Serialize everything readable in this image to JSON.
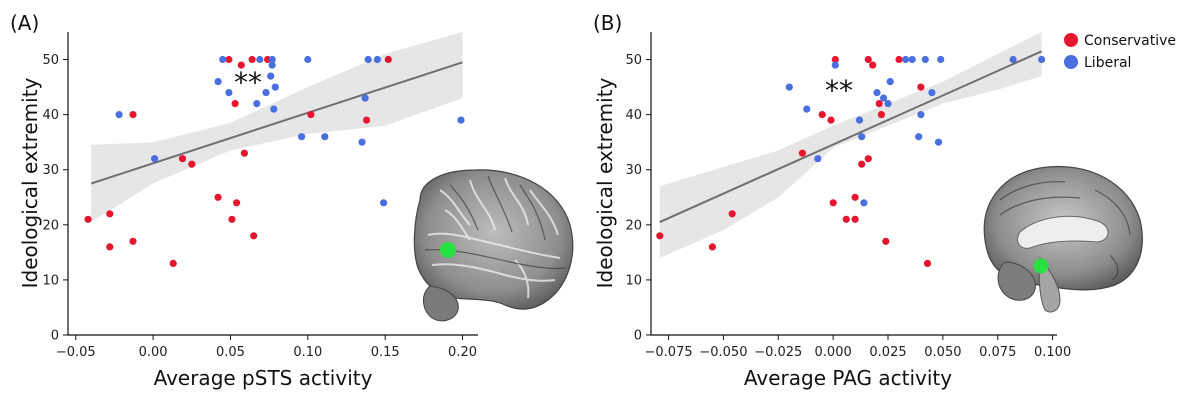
{
  "legend": {
    "conservative_label": "Conservative",
    "liberal_label": "Liberal",
    "conservative_color": "#e8152f",
    "liberal_color": "#4a6fe0"
  },
  "chart_data": [
    {
      "type": "scatter",
      "panel_label": "(A)",
      "title": "",
      "xlabel": "Average pSTS activity",
      "ylabel": "Ideological extremity",
      "xlim": [
        -0.055,
        0.21
      ],
      "ylim": [
        0,
        55
      ],
      "xticks": [
        -0.05,
        0.0,
        0.05,
        0.1,
        0.15,
        0.2
      ],
      "xtick_labels": [
        "−0.05",
        "0.00",
        "0.05",
        "0.10",
        "0.15",
        "0.20"
      ],
      "yticks": [
        0,
        10,
        20,
        30,
        40,
        50
      ],
      "ytick_labels": [
        "0",
        "10",
        "20",
        "30",
        "40",
        "50"
      ],
      "significance": "**",
      "inset": "brain-lateral-pSTS",
      "fit": {
        "x": [
          -0.04,
          0.2
        ],
        "y": [
          27.5,
          49.5
        ]
      },
      "band": {
        "x": [
          -0.04,
          0.0,
          0.05,
          0.1,
          0.15,
          0.2
        ],
        "upper": [
          34.5,
          35.0,
          38.5,
          45.0,
          51.0,
          55.0
        ],
        "lower": [
          20.5,
          27.5,
          33.5,
          36.5,
          38.0,
          43.0
        ]
      },
      "series": [
        {
          "name": "Conservative",
          "points": [
            [
              -0.042,
              21
            ],
            [
              -0.028,
              22
            ],
            [
              -0.028,
              16
            ],
            [
              -0.013,
              17
            ],
            [
              -0.013,
              40
            ],
            [
              0.013,
              13
            ],
            [
              0.019,
              32
            ],
            [
              0.025,
              31
            ],
            [
              0.042,
              25
            ],
            [
              0.049,
              50
            ],
            [
              0.051,
              21
            ],
            [
              0.053,
              42
            ],
            [
              0.054,
              24
            ],
            [
              0.057,
              49
            ],
            [
              0.059,
              33
            ],
            [
              0.064,
              50
            ],
            [
              0.065,
              18
            ],
            [
              0.074,
              50
            ],
            [
              0.102,
              40
            ],
            [
              0.138,
              39
            ],
            [
              0.152,
              50
            ]
          ]
        },
        {
          "name": "Liberal",
          "points": [
            [
              -0.022,
              40
            ],
            [
              0.001,
              32
            ],
            [
              0.042,
              46
            ],
            [
              0.045,
              50
            ],
            [
              0.049,
              44
            ],
            [
              0.067,
              42
            ],
            [
              0.069,
              50
            ],
            [
              0.073,
              44
            ],
            [
              0.076,
              47
            ],
            [
              0.077,
              50
            ],
            [
              0.077,
              49
            ],
            [
              0.078,
              41
            ],
            [
              0.079,
              45
            ],
            [
              0.096,
              36
            ],
            [
              0.1,
              50
            ],
            [
              0.111,
              36
            ],
            [
              0.135,
              35
            ],
            [
              0.137,
              43
            ],
            [
              0.139,
              50
            ],
            [
              0.145,
              50
            ],
            [
              0.149,
              24
            ],
            [
              0.199,
              39
            ]
          ]
        }
      ]
    },
    {
      "type": "scatter",
      "panel_label": "(B)",
      "title": "",
      "xlabel": "Average PAG activity",
      "ylabel": "Ideological extremity",
      "xlim": [
        -0.083,
        0.102
      ],
      "ylim": [
        0,
        55
      ],
      "xticks": [
        -0.075,
        -0.05,
        -0.025,
        0.0,
        0.025,
        0.05,
        0.075,
        0.1
      ],
      "xtick_labels": [
        "−0.075",
        "−0.050",
        "−0.025",
        "0.000",
        "0.025",
        "0.050",
        "0.075",
        "0.100"
      ],
      "yticks": [
        0,
        10,
        20,
        30,
        40,
        50
      ],
      "ytick_labels": [
        "0",
        "10",
        "20",
        "30",
        "40",
        "50"
      ],
      "significance": "**",
      "inset": "brain-medial-PAG",
      "fit": {
        "x": [
          -0.079,
          0.095
        ],
        "y": [
          20.5,
          51.5
        ]
      },
      "band": {
        "x": [
          -0.079,
          -0.05,
          -0.025,
          0.0,
          0.025,
          0.05,
          0.075,
          0.095
        ],
        "upper": [
          27.0,
          30.5,
          33.5,
          38.0,
          42.0,
          46.0,
          51.0,
          55.0
        ],
        "lower": [
          14.0,
          19.0,
          25.0,
          34.0,
          38.0,
          42.0,
          44.5,
          47.0
        ]
      },
      "series": [
        {
          "name": "Conservative",
          "points": [
            [
              -0.079,
              18
            ],
            [
              -0.055,
              16
            ],
            [
              -0.046,
              22
            ],
            [
              -0.014,
              33
            ],
            [
              -0.005,
              40
            ],
            [
              -0.001,
              39
            ],
            [
              0.0,
              24
            ],
            [
              0.001,
              50
            ],
            [
              0.006,
              21
            ],
            [
              0.01,
              21
            ],
            [
              0.01,
              25
            ],
            [
              0.013,
              31
            ],
            [
              0.016,
              32
            ],
            [
              0.016,
              50
            ],
            [
              0.018,
              49
            ],
            [
              0.021,
              42
            ],
            [
              0.022,
              40
            ],
            [
              0.024,
              17
            ],
            [
              0.03,
              50
            ],
            [
              0.04,
              45
            ],
            [
              0.043,
              13
            ]
          ]
        },
        {
          "name": "Liberal",
          "points": [
            [
              -0.02,
              45
            ],
            [
              -0.012,
              41
            ],
            [
              -0.007,
              32
            ],
            [
              0.001,
              49
            ],
            [
              0.012,
              39
            ],
            [
              0.013,
              36
            ],
            [
              0.014,
              24
            ],
            [
              0.02,
              44
            ],
            [
              0.023,
              43
            ],
            [
              0.025,
              42
            ],
            [
              0.026,
              46
            ],
            [
              0.033,
              50
            ],
            [
              0.036,
              50
            ],
            [
              0.039,
              36
            ],
            [
              0.04,
              40
            ],
            [
              0.042,
              50
            ],
            [
              0.045,
              44
            ],
            [
              0.048,
              35
            ],
            [
              0.049,
              50
            ],
            [
              0.082,
              50
            ],
            [
              0.095,
              50
            ]
          ]
        }
      ]
    }
  ]
}
